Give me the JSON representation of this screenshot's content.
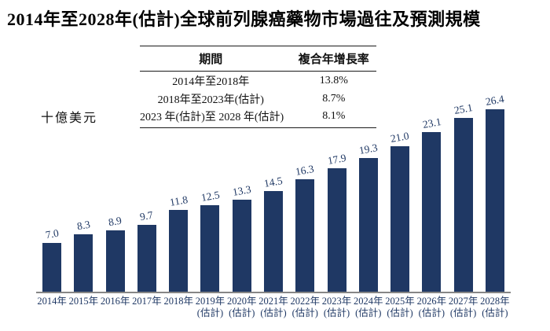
{
  "title": "2014年至2028年(估計)全球前列腺癌藥物市場過往及預測規模",
  "y_axis_label": "十億美元",
  "cagr_table": {
    "headers": [
      "期間",
      "複合年增長率"
    ],
    "rows": [
      {
        "period": "2014年至2018年",
        "cagr": "13.8%"
      },
      {
        "period": "2018年至2023年(估計)",
        "cagr": "8.7%"
      },
      {
        "period": "2023 年(估計)至 2028 年(估計)",
        "cagr": "8.1%"
      }
    ]
  },
  "chart_data": {
    "type": "bar",
    "title": "2014年至2028年(估計)全球前列腺癌藥物市場過往及預測規模",
    "ylabel": "十億美元",
    "xlabel": "",
    "ylim": [
      0,
      28
    ],
    "grid": false,
    "bar_color": "#1f3864",
    "axis_line_color": "#868686",
    "categories": [
      "2014年",
      "2015年",
      "2016年",
      "2017年",
      "2018年",
      "2019年(估計)",
      "2020年(估計)",
      "2021年(估計)",
      "2022年(估計)",
      "2023年(估計)",
      "2024年(估計)",
      "2025年(估計)",
      "2026年(估計)",
      "2027年(估計)",
      "2028年(估計)"
    ],
    "values": [
      7.0,
      8.3,
      8.9,
      9.7,
      11.8,
      12.5,
      13.3,
      14.5,
      16.3,
      17.9,
      19.3,
      21.0,
      23.1,
      25.1,
      26.4
    ],
    "value_labels": [
      "7.0",
      "8.3",
      "8.9",
      "9.7",
      "11.8",
      "12.5",
      "13.3",
      "14.5",
      "16.3",
      "17.9",
      "19.3",
      "21.0",
      "23.1",
      "25.1",
      "26.4"
    ]
  }
}
